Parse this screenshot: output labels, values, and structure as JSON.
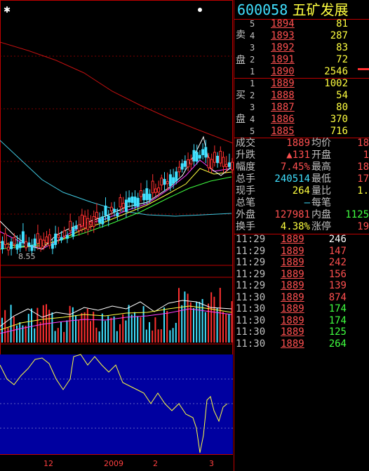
{
  "header": {
    "code": "600058",
    "name": "五矿发展"
  },
  "sell_side_label": [
    "卖",
    "盘"
  ],
  "buy_side_label": [
    "买",
    "盘"
  ],
  "sell": [
    {
      "level": "5",
      "price": "1894",
      "vol": "81"
    },
    {
      "level": "4",
      "price": "1893",
      "vol": "287"
    },
    {
      "level": "3",
      "price": "1892",
      "vol": "83"
    },
    {
      "level": "2",
      "price": "1891",
      "vol": "72"
    },
    {
      "level": "1",
      "price": "1890",
      "vol": "2546"
    }
  ],
  "buy": [
    {
      "level": "1",
      "price": "1889",
      "vol": "1002"
    },
    {
      "level": "2",
      "price": "1888",
      "vol": "54"
    },
    {
      "level": "3",
      "price": "1887",
      "vol": "80"
    },
    {
      "level": "4",
      "price": "1886",
      "vol": "370"
    },
    {
      "level": "5",
      "price": "1885",
      "vol": "716"
    }
  ],
  "stats": {
    "l1": "成交",
    "v1": "1889",
    "l2": "均价",
    "v2": "18",
    "l3": "升跌",
    "v3": "▲131",
    "l4": "开盘",
    "v4": "1",
    "l5": "幅度",
    "v5": "7.45%",
    "l6": "最高",
    "v6": "18",
    "l7": "总手",
    "v7": "240514",
    "l8": "最低",
    "v8": "17",
    "l9": "现手",
    "v9": "264",
    "l10": "量比",
    "v10": "1.",
    "l11": "总笔",
    "v11": "—",
    "l12": "每笔",
    "v12": "",
    "l13": "外盘",
    "v13": "127981",
    "l14": "内盘",
    "v14": "1125",
    "l15": "换手",
    "v15": "4.38%",
    "l16": "涨停",
    "v16": "19"
  },
  "ticks": [
    {
      "time": "11:29",
      "price": "1889",
      "vol": "246",
      "color": "#ffffff"
    },
    {
      "time": "11:29",
      "price": "1889",
      "vol": "147",
      "color": "#ff5050"
    },
    {
      "time": "11:29",
      "price": "1889",
      "vol": "242",
      "color": "#ff5050"
    },
    {
      "time": "11:29",
      "price": "1889",
      "vol": "156",
      "color": "#ff5050"
    },
    {
      "time": "11:29",
      "price": "1889",
      "vol": "139",
      "color": "#ff5050"
    },
    {
      "time": "11:30",
      "price": "1889",
      "vol": "874",
      "color": "#ff5050"
    },
    {
      "time": "11:30",
      "price": "1889",
      "vol": "174",
      "color": "#40ff40"
    },
    {
      "time": "11:30",
      "price": "1889",
      "vol": "174",
      "color": "#40ff40"
    },
    {
      "time": "11:30",
      "price": "1889",
      "vol": "125",
      "color": "#40ff40"
    },
    {
      "time": "11:30",
      "price": "1889",
      "vol": "264",
      "color": "#40ff40"
    }
  ],
  "chart_labels": {
    "low_marker": "8.55",
    "x_ticks": [
      "12",
      "2009",
      "2",
      "3"
    ]
  },
  "chart_data": {
    "type": "candlestick",
    "low_price_label": 8.55,
    "x_axis_labels": [
      "12",
      "2009",
      "2",
      "3"
    ]
  }
}
